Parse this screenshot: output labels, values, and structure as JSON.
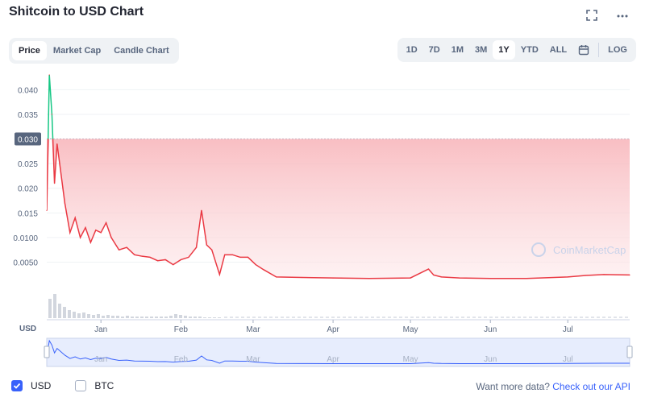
{
  "title": "Shitcoin to USD Chart",
  "icons": {
    "fullscreen": "fullscreen-icon",
    "more": "more-icon",
    "calendar": "calendar-icon",
    "check": "check-icon"
  },
  "view_tabs": [
    {
      "label": "Price",
      "active": true
    },
    {
      "label": "Market Cap",
      "active": false
    },
    {
      "label": "Candle Chart",
      "active": false
    }
  ],
  "range_tabs": [
    {
      "label": "1D",
      "active": false
    },
    {
      "label": "7D",
      "active": false
    },
    {
      "label": "1M",
      "active": false
    },
    {
      "label": "3M",
      "active": false
    },
    {
      "label": "1Y",
      "active": true
    },
    {
      "label": "YTD",
      "active": false
    },
    {
      "label": "ALL",
      "active": false
    }
  ],
  "log_label": "LOG",
  "colors": {
    "down": "#ea3943",
    "up": "#16c784",
    "accent": "#3861fb",
    "fill_top": "#f8b7bc",
    "navigator": "#e7edfd"
  },
  "legend": {
    "usd": "USD",
    "btc": "BTC"
  },
  "api_text": "Want more data?",
  "api_link": "Check out our API",
  "watermark": "CoinMarketCap",
  "chart_data": {
    "type": "line",
    "currency_label": "USD",
    "reference_price": "0.030",
    "reference_value": 0.03,
    "y_ticks": [
      "0.040",
      "0.035",
      "0.030",
      "0.025",
      "0.020",
      "0.015",
      "0.0100",
      "0.0050"
    ],
    "y_tick_values": [
      0.04,
      0.035,
      0.03,
      0.025,
      0.02,
      0.015,
      0.01,
      0.005
    ],
    "ylim": [
      0.001,
      0.043
    ],
    "x_ticks": [
      "Jan",
      "Feb",
      "Mar",
      "Apr",
      "May",
      "Jun",
      "Jul"
    ],
    "x_tick_values": [
      "2021-01-01",
      "2021-02-01",
      "2021-03-01",
      "2021-04-01",
      "2021-05-01",
      "2021-06-01",
      "2021-07-01"
    ],
    "xlim": [
      "2020-12-11",
      "2021-07-25"
    ],
    "grid": true,
    "series": [
      {
        "x": [
          "2020-12-11",
          "2020-12-12",
          "2020-12-13",
          "2020-12-14",
          "2020-12-15",
          "2020-12-16",
          "2020-12-18",
          "2020-12-20",
          "2020-12-22",
          "2020-12-24",
          "2020-12-26",
          "2020-12-28",
          "2020-12-30",
          "2021-01-01",
          "2021-01-03",
          "2021-01-05",
          "2021-01-08",
          "2021-01-11",
          "2021-01-14",
          "2021-01-17",
          "2021-01-20",
          "2021-01-23",
          "2021-01-26",
          "2021-01-29",
          "2021-02-01",
          "2021-02-04",
          "2021-02-07",
          "2021-02-09",
          "2021-02-11",
          "2021-02-13",
          "2021-02-16",
          "2021-02-18",
          "2021-02-21",
          "2021-02-24",
          "2021-02-27",
          "2021-03-02",
          "2021-03-05",
          "2021-03-10",
          "2021-03-20",
          "2021-04-01",
          "2021-04-15",
          "2021-05-01",
          "2021-05-08",
          "2021-05-10",
          "2021-05-13",
          "2021-05-20",
          "2021-06-01",
          "2021-06-15",
          "2021-07-01",
          "2021-07-08",
          "2021-07-15",
          "2021-07-25"
        ],
        "values": [
          0.0155,
          0.043,
          0.035,
          0.021,
          0.029,
          0.025,
          0.017,
          0.011,
          0.014,
          0.01,
          0.012,
          0.009,
          0.0115,
          0.011,
          0.013,
          0.01,
          0.0075,
          0.008,
          0.0065,
          0.0062,
          0.006,
          0.0053,
          0.0055,
          0.0045,
          0.0055,
          0.006,
          0.008,
          0.0155,
          0.0085,
          0.0075,
          0.0025,
          0.0065,
          0.0065,
          0.006,
          0.006,
          0.0045,
          0.0035,
          0.002,
          0.0019,
          0.0018,
          0.0017,
          0.0018,
          0.0036,
          0.0024,
          0.002,
          0.0018,
          0.0017,
          0.0017,
          0.002,
          0.0023,
          0.0025,
          0.0024
        ]
      }
    ]
  }
}
